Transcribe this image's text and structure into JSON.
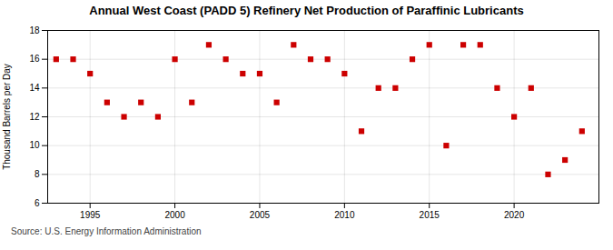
{
  "chart_data": {
    "type": "scatter",
    "title": "Annual West Coast (PADD 5) Refinery Net Production of Paraffinic Lubricants",
    "ylabel": "Thousand Barrels per Day",
    "source": "Source: U.S. Energy Information Administration",
    "x": [
      1993,
      1994,
      1995,
      1996,
      1997,
      1998,
      1999,
      2000,
      2001,
      2002,
      2003,
      2004,
      2005,
      2006,
      2007,
      2008,
      2009,
      2010,
      2011,
      2012,
      2013,
      2014,
      2015,
      2016,
      2017,
      2018,
      2019,
      2020,
      2021,
      2022,
      2023,
      2024
    ],
    "values": [
      16,
      16,
      15,
      13,
      12,
      13,
      12,
      16,
      13,
      17,
      16,
      15,
      15,
      13,
      17,
      16,
      16,
      15,
      11,
      14,
      14,
      16,
      17,
      10,
      17,
      17,
      14,
      12,
      14,
      8,
      9,
      11
    ],
    "xlim": [
      1992.5,
      2025
    ],
    "xticks": [
      1995,
      2000,
      2005,
      2010,
      2015,
      2020
    ],
    "ylim": [
      6,
      18
    ],
    "yticks": [
      6,
      8,
      10,
      12,
      14,
      16,
      18
    ],
    "color": "#cc0000",
    "marker": "square",
    "grid": true
  }
}
